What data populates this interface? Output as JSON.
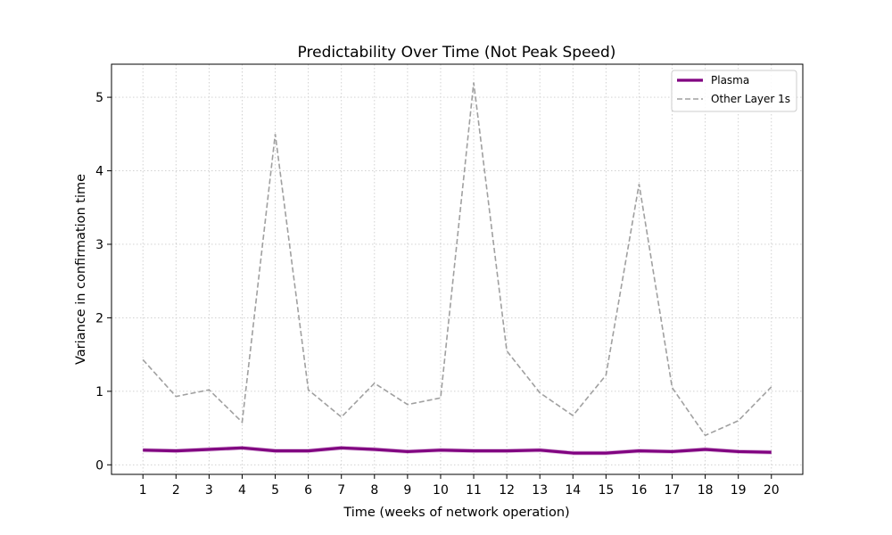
{
  "chart_data": {
    "type": "line",
    "title": "Predictability Over Time (Not Peak Speed)",
    "xlabel": "Time (weeks of network operation)",
    "ylabel": "Variance in confirmation time",
    "x": [
      1,
      2,
      3,
      4,
      5,
      6,
      7,
      8,
      9,
      10,
      11,
      12,
      13,
      14,
      15,
      16,
      17,
      18,
      19,
      20
    ],
    "xlim": [
      0.05,
      20.95
    ],
    "ylim": [
      -0.13,
      5.45
    ],
    "yticks": [
      0,
      1,
      2,
      3,
      4,
      5
    ],
    "grid": true,
    "legend_position": "top-right",
    "series": [
      {
        "name": "Plasma",
        "color": "#800080",
        "style": "solid",
        "band": 0.03,
        "values": [
          0.2,
          0.19,
          0.21,
          0.23,
          0.19,
          0.19,
          0.23,
          0.21,
          0.18,
          0.2,
          0.19,
          0.19,
          0.2,
          0.16,
          0.16,
          0.19,
          0.18,
          0.21,
          0.18,
          0.17
        ]
      },
      {
        "name": "Other Layer 1s",
        "color": "#a0a0a0",
        "style": "dashed",
        "values": [
          1.43,
          0.93,
          1.02,
          0.58,
          4.5,
          1.02,
          0.65,
          1.11,
          0.82,
          0.91,
          5.2,
          1.55,
          0.98,
          0.67,
          1.22,
          3.82,
          1.05,
          0.4,
          0.6,
          1.06
        ]
      }
    ]
  }
}
